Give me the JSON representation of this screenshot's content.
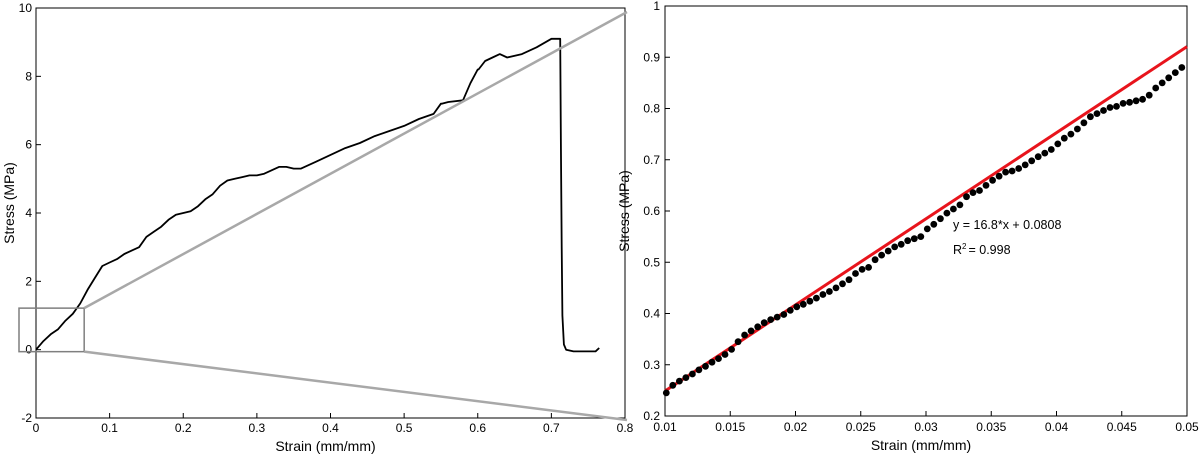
{
  "colors": {
    "curve": "#000000",
    "fit_line": "#e8141c",
    "points": "#000000",
    "zoom_lines": "#a8a8a8",
    "axes": "#000000"
  },
  "chart_data": [
    {
      "type": "line",
      "xlabel": "Strain (mm/mm)",
      "ylabel": "Stress (MPa)",
      "xlim": [
        0,
        0.8
      ],
      "ylim": [
        -2,
        10
      ],
      "xticks": [
        "0",
        "0.1",
        "0.2",
        "0.3",
        "0.4",
        "0.5",
        "0.6",
        "0.7",
        "0.8"
      ],
      "yticks": [
        "-2",
        "0",
        "2",
        "4",
        "6",
        "8",
        "10"
      ],
      "grid": false,
      "series": [
        {
          "x": [
            0,
            0.01,
            0.02,
            0.03,
            0.04,
            0.05,
            0.06,
            0.07,
            0.08,
            0.09,
            0.1,
            0.11,
            0.12,
            0.13,
            0.14,
            0.15,
            0.16,
            0.17,
            0.18,
            0.19,
            0.2,
            0.21,
            0.22,
            0.23,
            0.24,
            0.25,
            0.26,
            0.27,
            0.28,
            0.29,
            0.3,
            0.31,
            0.32,
            0.33,
            0.34,
            0.35,
            0.36,
            0.38,
            0.4,
            0.42,
            0.44,
            0.46,
            0.48,
            0.5,
            0.52,
            0.54,
            0.55,
            0.551,
            0.56,
            0.58,
            0.59,
            0.6,
            0.601,
            0.61,
            0.62,
            0.63,
            0.64,
            0.66,
            0.68,
            0.7,
            0.71,
            0.712,
            0.713,
            0.714,
            0.715,
            0.717,
            0.72,
            0.73,
            0.74,
            0.75,
            0.76,
            0.765
          ],
          "y": [
            0.0,
            0.25,
            0.45,
            0.6,
            0.85,
            1.05,
            1.35,
            1.75,
            2.1,
            2.45,
            2.55,
            2.65,
            2.8,
            2.9,
            3.0,
            3.3,
            3.45,
            3.6,
            3.8,
            3.95,
            4.0,
            4.05,
            4.2,
            4.4,
            4.55,
            4.8,
            4.95,
            5.0,
            5.05,
            5.1,
            5.1,
            5.15,
            5.25,
            5.35,
            5.35,
            5.3,
            5.3,
            5.5,
            5.7,
            5.9,
            6.05,
            6.25,
            6.4,
            6.55,
            6.75,
            6.9,
            7.2,
            7.2,
            7.25,
            7.3,
            7.8,
            8.2,
            8.2,
            8.45,
            8.55,
            8.65,
            8.55,
            8.65,
            8.85,
            9.1,
            9.1,
            9.1,
            6.0,
            3.0,
            1.0,
            0.15,
            0.0,
            -0.05,
            -0.05,
            -0.05,
            -0.05,
            0.05
          ]
        }
      ],
      "inset_box": {
        "x": [
          0,
          0.06
        ],
        "y": [
          0,
          1.45
        ]
      }
    },
    {
      "type": "scatter",
      "xlabel": "Strain (mm/mm)",
      "ylabel": "Stress (MPa)",
      "xlim": [
        0.01,
        0.05
      ],
      "ylim": [
        0.2,
        1
      ],
      "xticks": [
        "0.01",
        "0.015",
        "0.02",
        "0.025",
        "0.03",
        "0.035",
        "0.04",
        "0.045",
        "0.05"
      ],
      "yticks": [
        "0.2",
        "0.3",
        "0.4",
        "0.5",
        "0.6",
        "0.7",
        "0.8",
        "0.9",
        "1"
      ],
      "grid": false,
      "series": [
        {
          "x": [
            0.0101,
            0.0106,
            0.0111,
            0.0116,
            0.0121,
            0.0126,
            0.0131,
            0.0136,
            0.0141,
            0.0146,
            0.0151,
            0.0156,
            0.0161,
            0.0166,
            0.0171,
            0.0176,
            0.0181,
            0.0186,
            0.0191,
            0.0196,
            0.0201,
            0.0206,
            0.0211,
            0.0216,
            0.0221,
            0.0226,
            0.0231,
            0.0236,
            0.0241,
            0.0246,
            0.0251,
            0.0256,
            0.0261,
            0.0266,
            0.0271,
            0.0276,
            0.0281,
            0.0286,
            0.0291,
            0.0296,
            0.0301,
            0.0306,
            0.0311,
            0.0316,
            0.0321,
            0.0326,
            0.0331,
            0.0336,
            0.0341,
            0.0346,
            0.0351,
            0.0356,
            0.0361,
            0.0366,
            0.0371,
            0.0376,
            0.0381,
            0.0386,
            0.0391,
            0.0396,
            0.0401,
            0.0406,
            0.0411,
            0.0416,
            0.0421,
            0.0426,
            0.0431,
            0.0436,
            0.0441,
            0.0446,
            0.0451,
            0.0456,
            0.0461,
            0.0466,
            0.0471,
            0.0476,
            0.0481,
            0.0486,
            0.0491,
            0.0496
          ],
          "y": [
            0.245,
            0.26,
            0.268,
            0.275,
            0.282,
            0.29,
            0.297,
            0.305,
            0.312,
            0.32,
            0.33,
            0.345,
            0.358,
            0.366,
            0.374,
            0.382,
            0.388,
            0.393,
            0.398,
            0.406,
            0.413,
            0.418,
            0.424,
            0.43,
            0.437,
            0.443,
            0.45,
            0.458,
            0.466,
            0.478,
            0.486,
            0.49,
            0.505,
            0.514,
            0.522,
            0.53,
            0.535,
            0.542,
            0.546,
            0.55,
            0.565,
            0.574,
            0.585,
            0.596,
            0.604,
            0.612,
            0.628,
            0.636,
            0.64,
            0.65,
            0.66,
            0.668,
            0.676,
            0.678,
            0.683,
            0.69,
            0.698,
            0.706,
            0.713,
            0.72,
            0.731,
            0.742,
            0.75,
            0.76,
            0.772,
            0.784,
            0.79,
            0.796,
            0.802,
            0.804,
            0.81,
            0.812,
            0.815,
            0.818,
            0.826,
            0.84,
            0.85,
            0.86,
            0.87,
            0.88
          ]
        },
        {
          "type": "line",
          "x": [
            0.01,
            0.05
          ],
          "y": [
            0.2488,
            0.9208
          ]
        }
      ],
      "annotations": [
        "y = 16.8*x + 0.0808",
        "R",
        "2",
        "= 0.998"
      ]
    }
  ]
}
